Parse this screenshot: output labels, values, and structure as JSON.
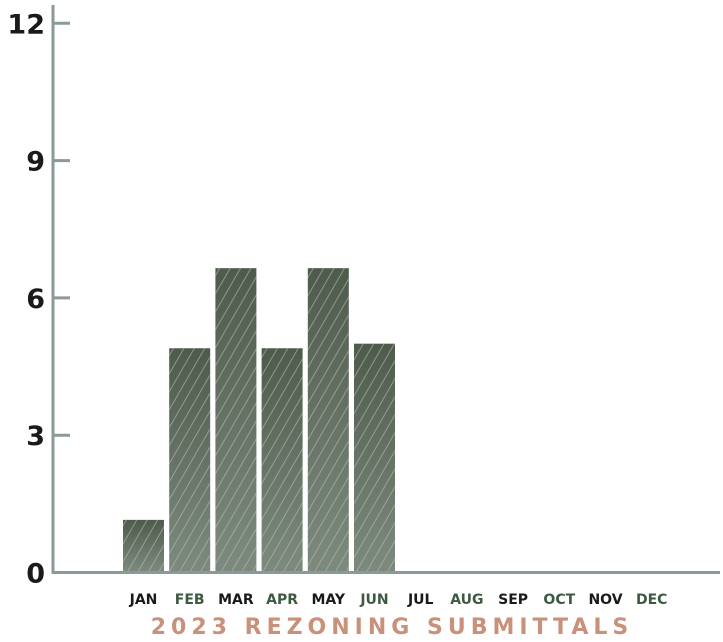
{
  "chart_data": {
    "type": "bar",
    "title": "2023 REZONING SUBMITTALS",
    "categories": [
      "JAN",
      "FEB",
      "MAR",
      "APR",
      "MAY",
      "JUN",
      "JUL",
      "AUG",
      "SEP",
      "OCT",
      "NOV",
      "DEC"
    ],
    "values": [
      1.15,
      4.9,
      6.65,
      4.9,
      6.65,
      5.0,
      null,
      null,
      null,
      null,
      null,
      null
    ],
    "yticks": [
      "0",
      "3",
      "6",
      "9",
      "12"
    ],
    "ylim": [
      0,
      12.4
    ],
    "grid": false,
    "colors": {
      "bar": "#4e5b4c",
      "bar_gradient_bottom": "#7d8a7f",
      "stripe": "#b5bfae",
      "axis": "#8a9a95",
      "title": "#c9907a",
      "label_dark": "#1a1a1a",
      "label_green": "#3d5a40"
    },
    "label_colors": [
      "dark",
      "green",
      "dark",
      "green",
      "dark",
      "green",
      "dark",
      "green",
      "dark",
      "green",
      "dark",
      "green"
    ]
  }
}
